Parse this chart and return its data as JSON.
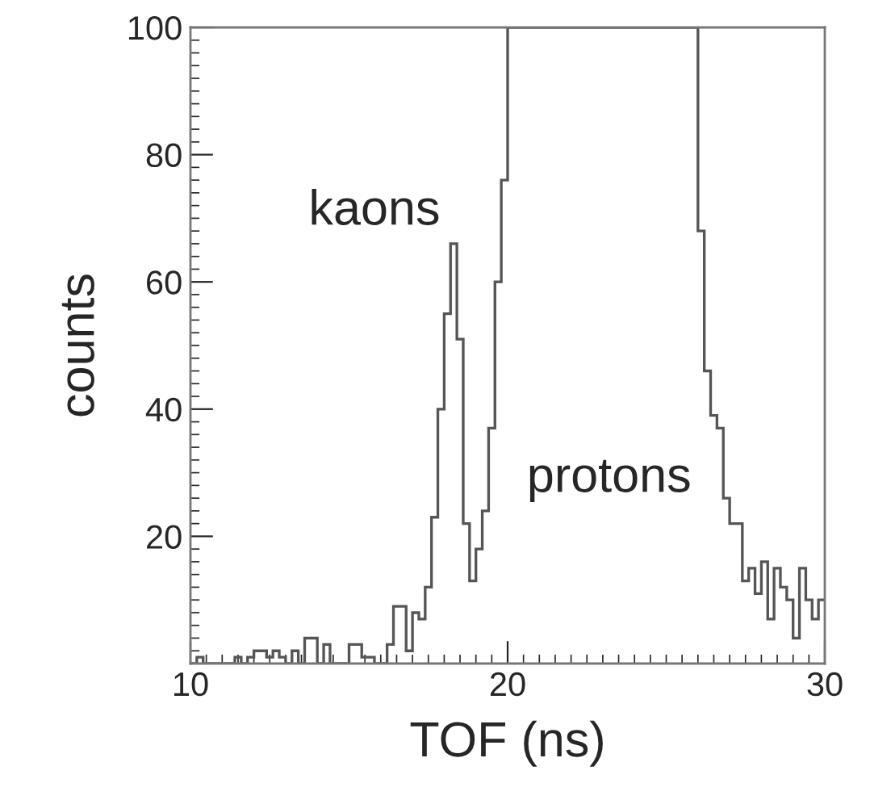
{
  "chart_data": {
    "type": "histogram",
    "xlabel": "TOF (ns)",
    "ylabel": "counts",
    "bins": [
      10.0,
      10.2,
      10.4,
      10.6,
      10.8,
      11.0,
      11.2,
      11.4,
      11.6,
      11.8,
      12.0,
      12.2,
      12.4,
      12.6,
      12.8,
      13.0,
      13.2,
      13.4,
      13.6,
      13.8,
      14.0,
      14.2,
      14.4,
      14.6,
      14.8,
      15.0,
      15.2,
      15.4,
      15.6,
      15.8,
      16.0,
      16.2,
      16.4,
      16.6,
      16.8,
      17.0,
      17.2,
      17.4,
      17.6,
      17.8,
      18.0,
      18.2,
      18.4,
      18.6,
      18.8,
      19.0,
      19.2,
      19.4,
      19.6,
      19.8,
      20.0,
      20.2,
      20.4,
      20.6,
      20.8,
      21.0,
      21.2,
      21.4,
      21.6,
      21.8,
      22.0,
      22.2,
      22.4,
      22.6,
      22.8,
      23.0,
      23.2,
      23.4,
      23.6,
      23.8,
      24.0,
      24.2,
      24.4,
      24.6,
      24.8,
      25.0,
      25.2,
      25.4,
      25.6,
      25.8,
      26.0,
      26.2,
      26.4,
      26.6,
      26.8,
      27.0,
      27.2,
      27.4,
      27.6,
      27.8,
      28.0,
      28.2,
      28.4,
      28.6,
      28.8,
      29.0,
      29.2,
      29.4,
      29.6,
      29.8,
      30.0
    ],
    "values": [
      0,
      1,
      0,
      0,
      0,
      0,
      0,
      1,
      0,
      1,
      2,
      2,
      1,
      2,
      1,
      0,
      2,
      0,
      4,
      4,
      0,
      3,
      0,
      0,
      0,
      3,
      3,
      1,
      1,
      0,
      0,
      3,
      9,
      9,
      2,
      8,
      7,
      12,
      23,
      40,
      55,
      66,
      51,
      22,
      13,
      18,
      24,
      37,
      60,
      76,
      100,
      100,
      100,
      100,
      100,
      100,
      100,
      100,
      100,
      100,
      100,
      100,
      100,
      100,
      100,
      100,
      100,
      100,
      100,
      100,
      100,
      100,
      100,
      100,
      100,
      100,
      100,
      100,
      100,
      100,
      68,
      46,
      39,
      37,
      26,
      22,
      22,
      13,
      15,
      11,
      16,
      7,
      15,
      12,
      10,
      4,
      15,
      10,
      7,
      10
    ],
    "color": "#555555",
    "xlim": [
      10,
      30
    ],
    "ylim": [
      0,
      100
    ],
    "xticks": [
      10,
      20,
      30
    ],
    "yticks": [
      20,
      40,
      60,
      80,
      100
    ],
    "grid": false,
    "annotations": [
      "kaons",
      "protons"
    ]
  }
}
